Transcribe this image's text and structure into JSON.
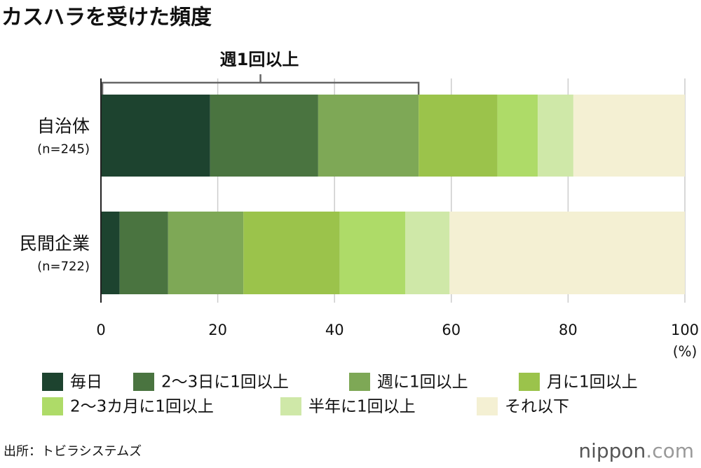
{
  "chart_data": {
    "type": "stacked-bar-horizontal",
    "title": "カスハラを受けた頻度",
    "bracket_label": "週1回以上",
    "categories": [
      "自治体",
      "民間企業"
    ],
    "sample_sizes": [
      "(n=245)",
      "(n=722)"
    ],
    "xlim": [
      0,
      100
    ],
    "xticks": [
      0,
      20,
      40,
      60,
      80,
      100
    ],
    "x_unit": "(%)",
    "grid": true,
    "series": [
      {
        "name": "毎日",
        "color": "#1d432f",
        "values": [
          18.7,
          3.2
        ]
      },
      {
        "name": "2〜3日に1回以上",
        "color": "#4a7440",
        "values": [
          18.5,
          8.3
        ]
      },
      {
        "name": "週に1回以上",
        "color": "#7ea856",
        "values": [
          17.2,
          12.9
        ]
      },
      {
        "name": "月に1回以上",
        "color": "#9bc34b",
        "values": [
          13.5,
          16.5
        ]
      },
      {
        "name": "2〜3カ月に1回以上",
        "color": "#aedb68",
        "values": [
          6.9,
          11.2
        ]
      },
      {
        "name": "半年に1回以上",
        "color": "#cfe8a8",
        "values": [
          6.1,
          7.6
        ]
      },
      {
        "name": "それ以下",
        "color": "#f4f0d3",
        "values": [
          19.1,
          40.3
        ]
      }
    ],
    "source": "出所：トビラシステムズ",
    "logo_name": "nippon",
    "logo_suffix": ".com"
  }
}
